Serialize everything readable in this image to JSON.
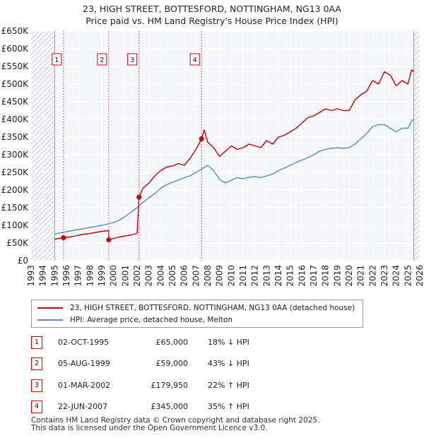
{
  "title_line1": "23, HIGH STREET, BOTTESFORD, NOTTINGHAM, NG13 0AA",
  "title_line2": "Price paid vs. HM Land Registry's House Price Index (HPI)",
  "chart_data": {
    "type": "line",
    "title": "23, HIGH STREET, BOTTESFORD, NOTTINGHAM, NG13 0AA — Price paid vs. HM Land Registry's House Price Index (HPI)",
    "xlim": [
      1993,
      2026
    ],
    "ylim": [
      0,
      650000
    ],
    "x_ticks": [
      1993,
      1994,
      1995,
      1996,
      1997,
      1998,
      1999,
      2000,
      2001,
      2002,
      2003,
      2004,
      2005,
      2006,
      2007,
      2008,
      2009,
      2010,
      2011,
      2012,
      2013,
      2014,
      2015,
      2016,
      2017,
      2018,
      2019,
      2020,
      2021,
      2022,
      2023,
      2024,
      2025,
      2026
    ],
    "y_ticks": [
      0,
      50000,
      100000,
      150000,
      200000,
      250000,
      300000,
      350000,
      400000,
      450000,
      500000,
      550000,
      600000,
      650000
    ],
    "y_tick_labels": [
      "£0",
      "£50K",
      "£100K",
      "£150K",
      "£200K",
      "£250K",
      "£300K",
      "£350K",
      "£400K",
      "£450K",
      "£500K",
      "£550K",
      "£600K",
      "£650K"
    ],
    "data_range": [
      1995.0,
      2025.5
    ],
    "series": [
      {
        "name": "23, HIGH STREET, BOTTESFORD, NOTTINGHAM, NG13 0AA (detached house)",
        "color": "#cc0000",
        "x": [
          1995.0,
          1995.75,
          1996.5,
          1997.0,
          1997.5,
          1998.0,
          1998.5,
          1999.0,
          1999.59,
          1999.6,
          2000.0,
          2000.5,
          2001.0,
          2001.5,
          2002.0,
          2002.16,
          2002.5,
          2003.0,
          2003.5,
          2004.0,
          2004.5,
          2005.0,
          2005.5,
          2006.0,
          2006.5,
          2007.0,
          2007.47,
          2007.7,
          2008.0,
          2008.5,
          2009.0,
          2009.5,
          2010.0,
          2010.5,
          2011.0,
          2011.5,
          2012.0,
          2012.5,
          2013.0,
          2013.5,
          2014.0,
          2014.5,
          2015.0,
          2015.5,
          2016.0,
          2016.5,
          2017.0,
          2017.5,
          2018.0,
          2018.5,
          2019.0,
          2019.5,
          2020.0,
          2020.5,
          2021.0,
          2021.5,
          2022.0,
          2022.5,
          2023.0,
          2023.5,
          2024.0,
          2024.5,
          2025.0,
          2025.3,
          2025.5
        ],
        "y": [
          61000,
          65000,
          68000,
          72000,
          75000,
          77000,
          80000,
          83000,
          85000,
          59000,
          63000,
          67000,
          70000,
          73000,
          77000,
          179950,
          205000,
          220000,
          240000,
          255000,
          265000,
          268000,
          275000,
          270000,
          290000,
          315000,
          345000,
          370000,
          335000,
          320000,
          295000,
          310000,
          325000,
          315000,
          320000,
          330000,
          325000,
          320000,
          340000,
          330000,
          350000,
          355000,
          365000,
          375000,
          390000,
          405000,
          410000,
          420000,
          430000,
          425000,
          430000,
          425000,
          425000,
          455000,
          470000,
          480000,
          510000,
          500000,
          535000,
          525000,
          495000,
          510000,
          500000,
          540000,
          535000
        ]
      },
      {
        "name": "HPI: Average price, detached house, Melton",
        "color": "#5b8cc4",
        "x": [
          1995.0,
          1995.5,
          1996.0,
          1996.5,
          1997.0,
          1997.5,
          1998.0,
          1998.5,
          1999.0,
          1999.5,
          2000.0,
          2000.5,
          2001.0,
          2001.5,
          2002.0,
          2002.5,
          2003.0,
          2003.5,
          2004.0,
          2004.5,
          2005.0,
          2005.5,
          2006.0,
          2006.5,
          2007.0,
          2007.5,
          2008.0,
          2008.5,
          2009.0,
          2009.5,
          2010.0,
          2010.5,
          2011.0,
          2011.5,
          2012.0,
          2012.5,
          2013.0,
          2013.5,
          2014.0,
          2014.5,
          2015.0,
          2015.5,
          2016.0,
          2016.5,
          2017.0,
          2017.5,
          2018.0,
          2018.5,
          2019.0,
          2019.5,
          2020.0,
          2020.5,
          2021.0,
          2021.5,
          2022.0,
          2022.5,
          2023.0,
          2023.5,
          2024.0,
          2024.5,
          2025.0,
          2025.3,
          2025.5
        ],
        "y": [
          75000,
          79000,
          82000,
          85000,
          88000,
          91000,
          94000,
          97000,
          100000,
          104000,
          108000,
          115000,
          125000,
          138000,
          150000,
          165000,
          178000,
          190000,
          205000,
          215000,
          222000,
          228000,
          235000,
          240000,
          250000,
          260000,
          270000,
          255000,
          230000,
          220000,
          228000,
          235000,
          232000,
          236000,
          238000,
          235000,
          240000,
          245000,
          255000,
          262000,
          270000,
          278000,
          285000,
          292000,
          300000,
          310000,
          315000,
          318000,
          320000,
          318000,
          320000,
          330000,
          345000,
          360000,
          380000,
          385000,
          385000,
          375000,
          365000,
          375000,
          375000,
          395000,
          400000
        ]
      }
    ],
    "sales": [
      {
        "num": "1",
        "x": 1995.75,
        "price": 65000,
        "date": "02-OCT-1995",
        "price_label": "£65,000",
        "hpi": "18% ↓ HPI"
      },
      {
        "num": "2",
        "x": 1999.59,
        "price": 59000,
        "date": "05-AUG-1999",
        "price_label": "£59,000",
        "hpi": "43% ↓ HPI"
      },
      {
        "num": "3",
        "x": 2002.16,
        "price": 179950,
        "date": "01-MAR-2002",
        "price_label": "£179,950",
        "hpi": "22% ↑ HPI"
      },
      {
        "num": "4",
        "x": 2007.47,
        "price": 345000,
        "date": "22-JUN-2007",
        "price_label": "£345,000",
        "hpi": "35% ↑ HPI"
      }
    ],
    "hatch_regions": [
      [
        1993,
        1995
      ],
      [
        2025.5,
        2026
      ]
    ]
  },
  "footer_line1": "Contains HM Land Registry data © Crown copyright and database right 2025.",
  "footer_line2": "This data is licensed under the Open Government Licence v3.0."
}
